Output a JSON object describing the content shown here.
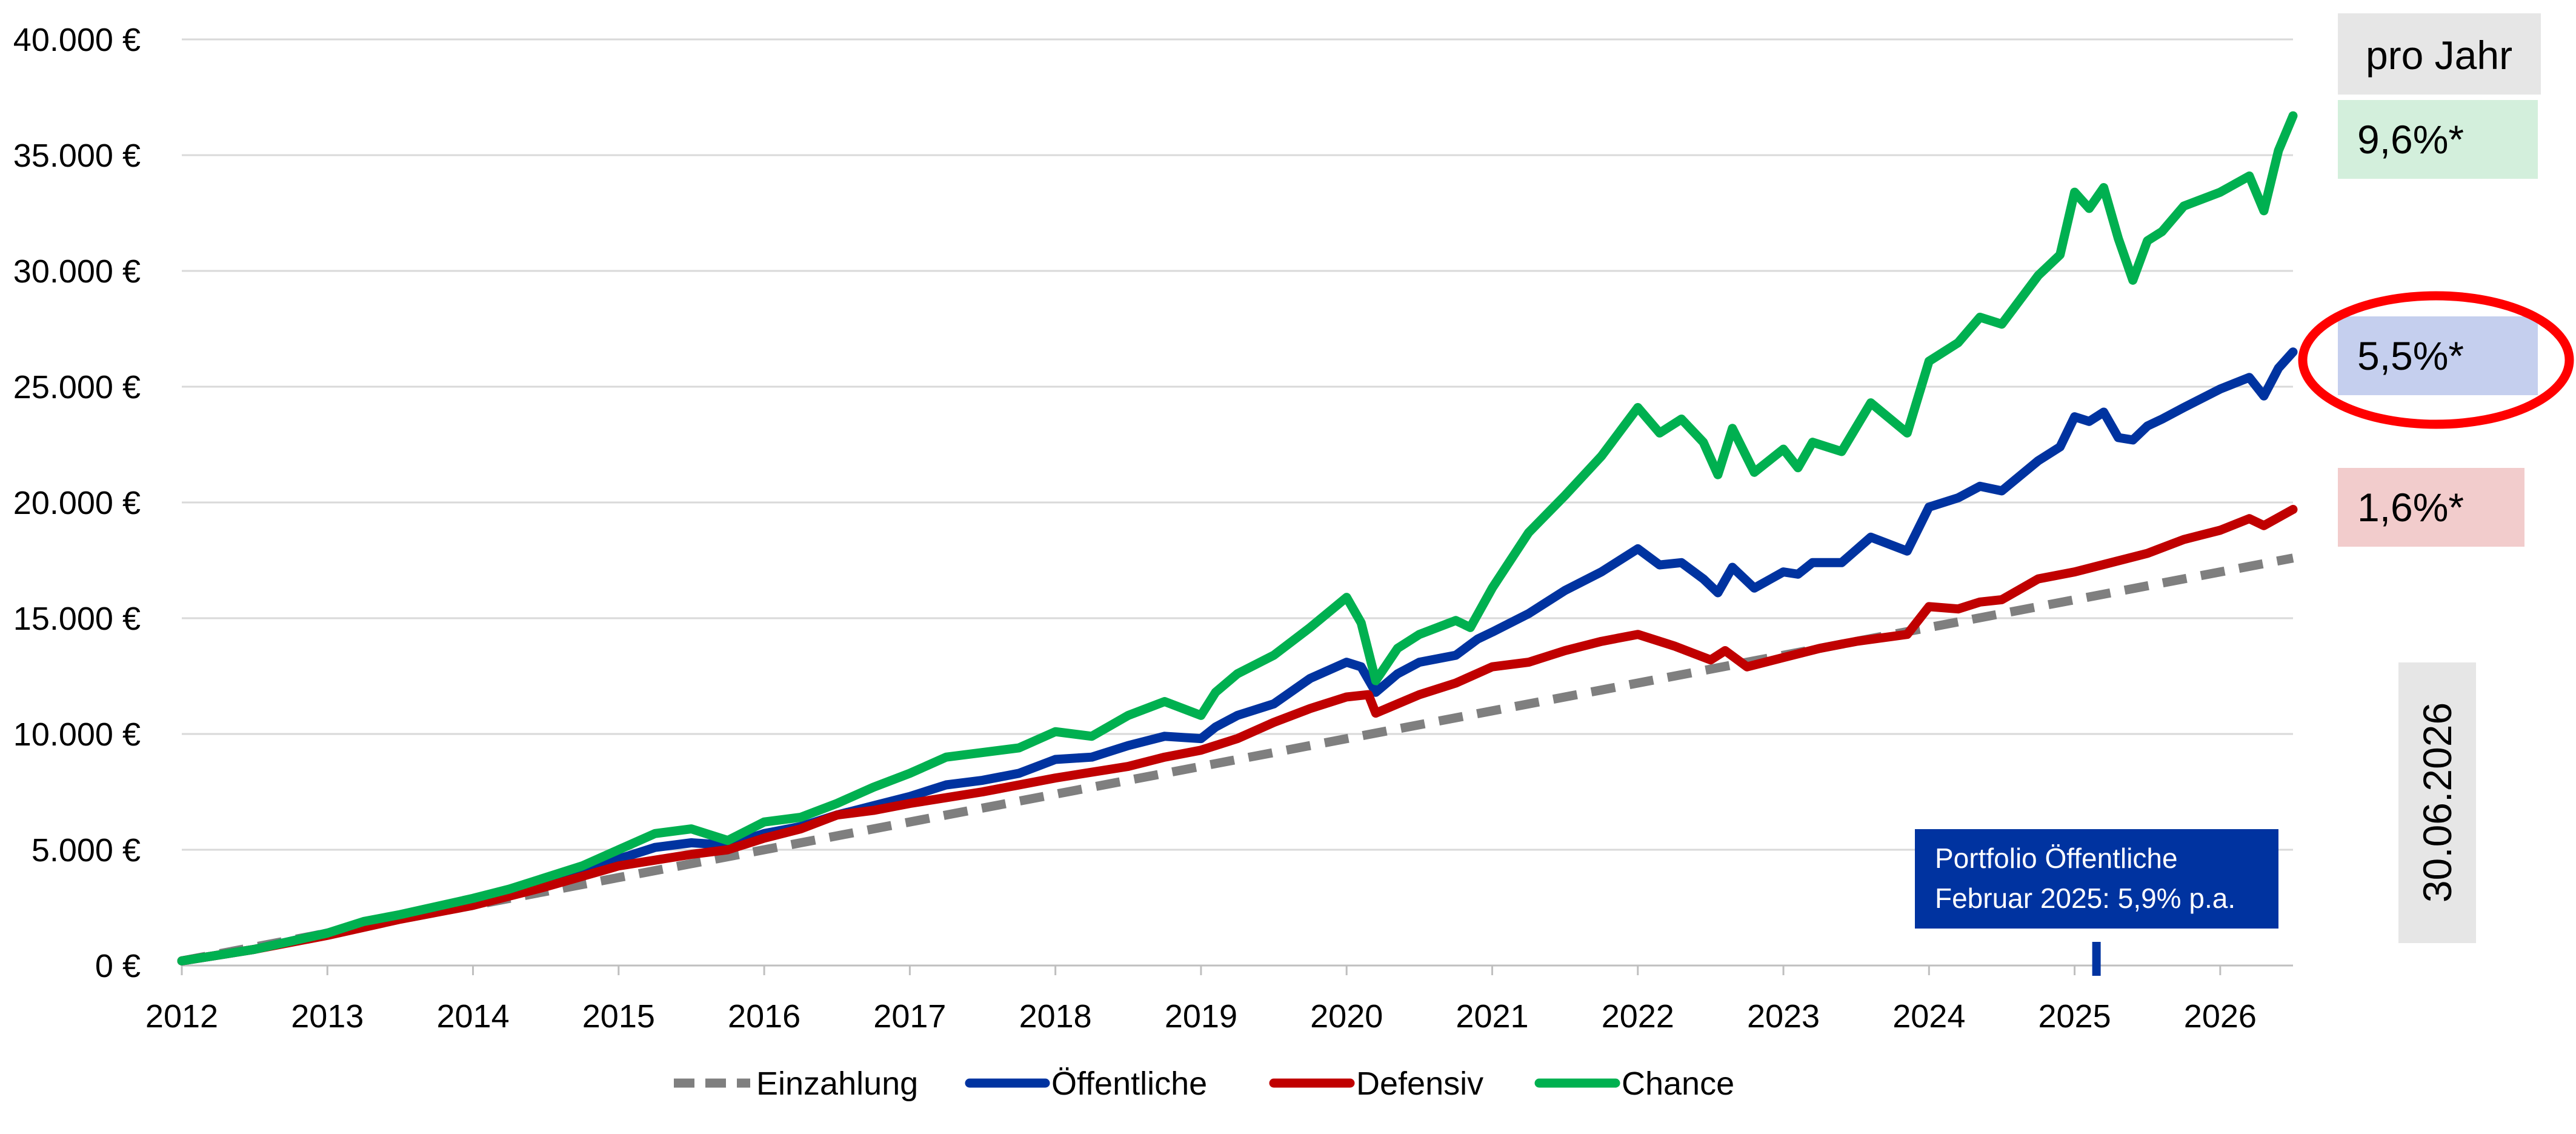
{
  "chart_data": {
    "type": "line",
    "title": "",
    "xlabel": "",
    "ylabel": "",
    "x_range": [
      2012,
      2026.5
    ],
    "ylim": [
      0,
      40000
    ],
    "x_tick_labels": [
      "2012",
      "2013",
      "2014",
      "2015",
      "2016",
      "2017",
      "2018",
      "2019",
      "2020",
      "2021",
      "2022",
      "2023",
      "2024",
      "2025",
      "2026"
    ],
    "x_tick_values": [
      2012,
      2013,
      2014,
      2015,
      2016,
      2017,
      2018,
      2019,
      2020,
      2021,
      2022,
      2023,
      2024,
      2025,
      2026
    ],
    "y_tick_labels": [
      "0 €",
      "5.000 €",
      "10.000 €",
      "15.000 €",
      "20.000 €",
      "25.000 €",
      "30.000 €",
      "35.000 €",
      "40.000 €"
    ],
    "y_tick_values": [
      0,
      5000,
      10000,
      15000,
      20000,
      25000,
      30000,
      35000,
      40000
    ],
    "grid": "horizontal",
    "legend_position": "bottom",
    "series": [
      {
        "name": "Einzahlung",
        "color": "#7f7f7f",
        "style": "dashed",
        "points": [
          [
            2012.0,
            200
          ],
          [
            2026.5,
            17600
          ]
        ]
      },
      {
        "name": "Öffentliche",
        "color": "#0033a0",
        "style": "solid",
        "points": [
          [
            2012.0,
            200
          ],
          [
            2012.5,
            700
          ],
          [
            2013.0,
            1400
          ],
          [
            2013.5,
            2100
          ],
          [
            2014.0,
            2800
          ],
          [
            2014.5,
            3600
          ],
          [
            2014.75,
            4000
          ],
          [
            2015.0,
            4600
          ],
          [
            2015.25,
            5100
          ],
          [
            2015.5,
            5300
          ],
          [
            2015.75,
            5200
          ],
          [
            2016.0,
            5700
          ],
          [
            2016.25,
            6000
          ],
          [
            2016.5,
            6500
          ],
          [
            2016.75,
            6900
          ],
          [
            2017.0,
            7300
          ],
          [
            2017.25,
            7800
          ],
          [
            2017.5,
            8000
          ],
          [
            2017.75,
            8300
          ],
          [
            2018.0,
            8900
          ],
          [
            2018.25,
            9000
          ],
          [
            2018.5,
            9500
          ],
          [
            2018.75,
            9900
          ],
          [
            2019.0,
            9800
          ],
          [
            2019.1,
            10300
          ],
          [
            2019.25,
            10800
          ],
          [
            2019.5,
            11300
          ],
          [
            2019.75,
            12400
          ],
          [
            2020.0,
            13100
          ],
          [
            2020.1,
            12900
          ],
          [
            2020.2,
            11800
          ],
          [
            2020.35,
            12600
          ],
          [
            2020.5,
            13100
          ],
          [
            2020.75,
            13400
          ],
          [
            2020.9,
            14100
          ],
          [
            2021.0,
            14400
          ],
          [
            2021.25,
            15200
          ],
          [
            2021.5,
            16200
          ],
          [
            2021.75,
            17000
          ],
          [
            2022.0,
            18000
          ],
          [
            2022.15,
            17300
          ],
          [
            2022.3,
            17400
          ],
          [
            2022.45,
            16700
          ],
          [
            2022.55,
            16100
          ],
          [
            2022.65,
            17200
          ],
          [
            2022.8,
            16300
          ],
          [
            2023.0,
            17000
          ],
          [
            2023.1,
            16900
          ],
          [
            2023.2,
            17400
          ],
          [
            2023.4,
            17400
          ],
          [
            2023.6,
            18500
          ],
          [
            2023.85,
            17900
          ],
          [
            2024.0,
            19800
          ],
          [
            2024.2,
            20200
          ],
          [
            2024.35,
            20700
          ],
          [
            2024.5,
            20500
          ],
          [
            2024.75,
            21800
          ],
          [
            2024.9,
            22400
          ],
          [
            2025.0,
            23700
          ],
          [
            2025.1,
            23500
          ],
          [
            2025.2,
            23900
          ],
          [
            2025.3,
            22800
          ],
          [
            2025.4,
            22700
          ],
          [
            2025.5,
            23300
          ],
          [
            2025.6,
            23600
          ],
          [
            2025.75,
            24100
          ],
          [
            2026.0,
            24900
          ],
          [
            2026.2,
            25400
          ],
          [
            2026.3,
            24600
          ],
          [
            2026.4,
            25800
          ],
          [
            2026.5,
            26500
          ]
        ]
      },
      {
        "name": "Defensiv",
        "color": "#c00000",
        "style": "solid",
        "points": [
          [
            2012.0,
            200
          ],
          [
            2012.5,
            700
          ],
          [
            2013.0,
            1300
          ],
          [
            2013.5,
            2000
          ],
          [
            2014.0,
            2600
          ],
          [
            2014.5,
            3400
          ],
          [
            2015.0,
            4300
          ],
          [
            2015.5,
            4800
          ],
          [
            2015.75,
            5000
          ],
          [
            2016.0,
            5500
          ],
          [
            2016.25,
            5900
          ],
          [
            2016.5,
            6500
          ],
          [
            2016.75,
            6700
          ],
          [
            2017.0,
            7000
          ],
          [
            2017.5,
            7500
          ],
          [
            2018.0,
            8100
          ],
          [
            2018.5,
            8600
          ],
          [
            2018.75,
            9000
          ],
          [
            2019.0,
            9300
          ],
          [
            2019.25,
            9800
          ],
          [
            2019.5,
            10500
          ],
          [
            2019.75,
            11100
          ],
          [
            2020.0,
            11600
          ],
          [
            2020.15,
            11700
          ],
          [
            2020.2,
            10900
          ],
          [
            2020.5,
            11700
          ],
          [
            2020.75,
            12200
          ],
          [
            2021.0,
            12900
          ],
          [
            2021.25,
            13100
          ],
          [
            2021.5,
            13600
          ],
          [
            2021.75,
            14000
          ],
          [
            2022.0,
            14300
          ],
          [
            2022.25,
            13800
          ],
          [
            2022.5,
            13200
          ],
          [
            2022.6,
            13600
          ],
          [
            2022.75,
            12900
          ],
          [
            2023.0,
            13300
          ],
          [
            2023.25,
            13700
          ],
          [
            2023.5,
            14000
          ],
          [
            2023.85,
            14300
          ],
          [
            2024.0,
            15500
          ],
          [
            2024.2,
            15400
          ],
          [
            2024.35,
            15700
          ],
          [
            2024.5,
            15800
          ],
          [
            2024.75,
            16700
          ],
          [
            2025.0,
            17000
          ],
          [
            2025.25,
            17400
          ],
          [
            2025.5,
            17800
          ],
          [
            2025.75,
            18400
          ],
          [
            2026.0,
            18800
          ],
          [
            2026.2,
            19300
          ],
          [
            2026.3,
            19000
          ],
          [
            2026.5,
            19700
          ]
        ]
      },
      {
        "name": "Chance",
        "color": "#00b050",
        "style": "solid",
        "points": [
          [
            2012.0,
            200
          ],
          [
            2012.5,
            700
          ],
          [
            2013.0,
            1400
          ],
          [
            2013.25,
            1900
          ],
          [
            2013.5,
            2200
          ],
          [
            2014.0,
            2900
          ],
          [
            2014.25,
            3300
          ],
          [
            2014.5,
            3800
          ],
          [
            2014.75,
            4300
          ],
          [
            2015.0,
            5000
          ],
          [
            2015.25,
            5700
          ],
          [
            2015.5,
            5900
          ],
          [
            2015.75,
            5400
          ],
          [
            2016.0,
            6200
          ],
          [
            2016.25,
            6400
          ],
          [
            2016.5,
            7000
          ],
          [
            2016.75,
            7700
          ],
          [
            2017.0,
            8300
          ],
          [
            2017.25,
            9000
          ],
          [
            2017.5,
            9200
          ],
          [
            2017.75,
            9400
          ],
          [
            2018.0,
            10100
          ],
          [
            2018.25,
            9900
          ],
          [
            2018.5,
            10800
          ],
          [
            2018.75,
            11400
          ],
          [
            2019.0,
            10800
          ],
          [
            2019.1,
            11800
          ],
          [
            2019.25,
            12600
          ],
          [
            2019.5,
            13400
          ],
          [
            2019.75,
            14600
          ],
          [
            2020.0,
            15900
          ],
          [
            2020.1,
            14800
          ],
          [
            2020.2,
            12300
          ],
          [
            2020.35,
            13700
          ],
          [
            2020.5,
            14300
          ],
          [
            2020.75,
            14900
          ],
          [
            2020.85,
            14600
          ],
          [
            2021.0,
            16300
          ],
          [
            2021.25,
            18700
          ],
          [
            2021.5,
            20300
          ],
          [
            2021.75,
            22000
          ],
          [
            2022.0,
            24100
          ],
          [
            2022.15,
            23000
          ],
          [
            2022.3,
            23600
          ],
          [
            2022.45,
            22600
          ],
          [
            2022.55,
            21200
          ],
          [
            2022.65,
            23200
          ],
          [
            2022.8,
            21300
          ],
          [
            2023.0,
            22300
          ],
          [
            2023.1,
            21500
          ],
          [
            2023.2,
            22600
          ],
          [
            2023.4,
            22200
          ],
          [
            2023.6,
            24300
          ],
          [
            2023.85,
            23000
          ],
          [
            2024.0,
            26100
          ],
          [
            2024.2,
            26900
          ],
          [
            2024.35,
            28000
          ],
          [
            2024.5,
            27700
          ],
          [
            2024.75,
            29800
          ],
          [
            2024.9,
            30700
          ],
          [
            2025.0,
            33400
          ],
          [
            2025.1,
            32700
          ],
          [
            2025.2,
            33600
          ],
          [
            2025.3,
            31400
          ],
          [
            2025.4,
            29600
          ],
          [
            2025.5,
            31300
          ],
          [
            2025.6,
            31700
          ],
          [
            2025.75,
            32800
          ],
          [
            2026.0,
            33400
          ],
          [
            2026.2,
            34100
          ],
          [
            2026.3,
            32600
          ],
          [
            2026.4,
            35200
          ],
          [
            2026.5,
            36700
          ]
        ]
      }
    ],
    "legend": [
      "Einzahlung",
      "Öffentliche",
      "Defensiv",
      "Chance"
    ],
    "annotations": {
      "header_box": {
        "label": "pro Jahr",
        "color": "#e6e6e6"
      },
      "rate_boxes": [
        {
          "label": "9,6%*",
          "series": "Chance",
          "color": "#d3efdc"
        },
        {
          "label": "5,5%*",
          "series": "Öffentliche",
          "color": "#c5cfee",
          "highlight_color": "#ff0000"
        },
        {
          "label": "1,6%*",
          "series": "Defensiv",
          "color": "#f2cccc"
        }
      ],
      "date_box": {
        "label": "30.06.2026",
        "color": "#e6e6e6"
      },
      "callout": {
        "lines": [
          "Portfolio Öffentliche",
          "Februar 2025: 5,9% p.a."
        ],
        "color": "#0033a0",
        "x": 2025.15
      }
    }
  }
}
